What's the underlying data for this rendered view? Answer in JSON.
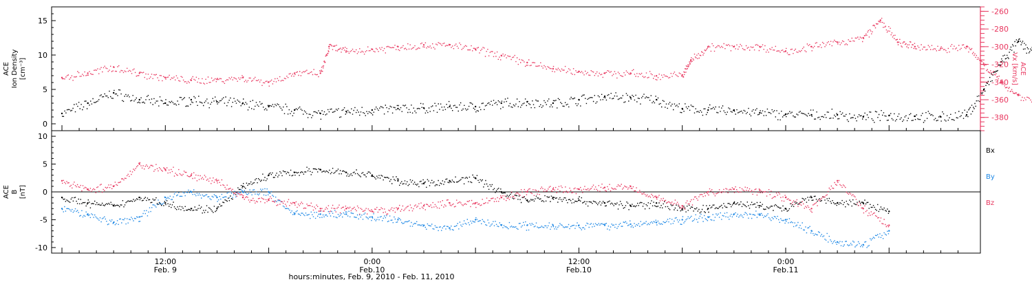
{
  "colors": {
    "black": "#000000",
    "red": "#e8375f",
    "blue": "#1e88e5",
    "frame": "#000000"
  },
  "chart_data": [
    {
      "type": "scatter",
      "panel": "top",
      "ylabel_lines": [
        "ACE",
        "Ion Density",
        "[cm⁻³]"
      ],
      "yticks": [
        "0",
        "5",
        "10",
        "15"
      ],
      "ylim": [
        -1,
        17
      ],
      "right_axis": {
        "label_lines": [
          "ACE",
          "Vx [km/s]"
        ],
        "yticks": [
          "-260",
          "-280",
          "-300",
          "-320",
          "-340",
          "-360",
          "-380"
        ],
        "ylim": [
          -395,
          -255
        ]
      },
      "series": [
        {
          "color": "black",
          "axis": "left",
          "points": [
            [
              0,
              1.5
            ],
            [
              1.5,
              3
            ],
            [
              3,
              4.5
            ],
            [
              4.5,
              3.5
            ],
            [
              6,
              3
            ],
            [
              7.5,
              3.5
            ],
            [
              9,
              3.2
            ],
            [
              10.5,
              3.0
            ],
            [
              12,
              2.5
            ],
            [
              13.5,
              2.0
            ],
            [
              15,
              1.5
            ],
            [
              16.5,
              1.8
            ],
            [
              18,
              2.0
            ],
            [
              19.5,
              2.2
            ],
            [
              21,
              2.3
            ],
            [
              22.5,
              2.5
            ],
            [
              24,
              2.5
            ],
            [
              25.5,
              3.0
            ],
            [
              27,
              3.2
            ],
            [
              28.5,
              3.0
            ],
            [
              30,
              3.5
            ],
            [
              31.5,
              4.0
            ],
            [
              33,
              3.8
            ],
            [
              34.5,
              3.5
            ],
            [
              36,
              2.2
            ],
            [
              37.5,
              2.0
            ],
            [
              39,
              2.0
            ],
            [
              40.5,
              1.6
            ],
            [
              42,
              1.4
            ],
            [
              43.5,
              1.3
            ],
            [
              45,
              1.3
            ],
            [
              46.5,
              1.0
            ],
            [
              48,
              1.2
            ],
            [
              49.5,
              1.1
            ],
            [
              51,
              1.0
            ],
            [
              52.5,
              1.3
            ],
            [
              53.5,
              5
            ],
            [
              54.5,
              9
            ],
            [
              55.5,
              12
            ],
            [
              56.5,
              10
            ],
            [
              57.5,
              14
            ],
            [
              58.5,
              15
            ],
            [
              59.5,
              13
            ],
            [
              60.5,
              14
            ]
          ]
        },
        {
          "color": "red",
          "axis": "right",
          "points": [
            [
              0,
              -335
            ],
            [
              1.5,
              -330
            ],
            [
              3,
              -323
            ],
            [
              4.5,
              -330
            ],
            [
              6,
              -335
            ],
            [
              7.5,
              -338
            ],
            [
              9,
              -337
            ],
            [
              10.5,
              -335
            ],
            [
              12,
              -340
            ],
            [
              13.5,
              -330
            ],
            [
              15,
              -330
            ],
            [
              15.5,
              -300
            ],
            [
              16.5,
              -305
            ],
            [
              18,
              -303
            ],
            [
              19.5,
              -300
            ],
            [
              21,
              -298
            ],
            [
              22.5,
              -298
            ],
            [
              24,
              -303
            ],
            [
              25.5,
              -310
            ],
            [
              27,
              -318
            ],
            [
              28.5,
              -325
            ],
            [
              30,
              -328
            ],
            [
              31.5,
              -330
            ],
            [
              33,
              -330
            ],
            [
              34.5,
              -333
            ],
            [
              36,
              -332
            ],
            [
              36.5,
              -315
            ],
            [
              37.5,
              -300
            ],
            [
              39,
              -300
            ],
            [
              40.5,
              -300
            ],
            [
              42,
              -305
            ],
            [
              43.5,
              -300
            ],
            [
              45,
              -295
            ],
            [
              46.5,
              -290
            ],
            [
              47.5,
              -270
            ],
            [
              48.5,
              -295
            ],
            [
              49.5,
              -300
            ],
            [
              51,
              -302
            ],
            [
              52.5,
              -300
            ],
            [
              53.5,
              -320
            ],
            [
              54.5,
              -340
            ],
            [
              55.5,
              -355
            ],
            [
              57,
              -365
            ],
            [
              58.5,
              -360
            ],
            [
              60,
              -350
            ],
            [
              61,
              -360
            ]
          ]
        }
      ]
    },
    {
      "type": "scatter",
      "panel": "bottom",
      "ylabel_lines": [
        "ACE",
        "B",
        "[nT]"
      ],
      "yticks": [
        "-10",
        "-5",
        "0",
        "5",
        "10"
      ],
      "ylim": [
        -11,
        11
      ],
      "legend": [
        "Bx",
        "By",
        "Bz"
      ],
      "legend_placement": "right",
      "xticks": [
        {
          "t": 6,
          "line1": "12:00",
          "line2": "Feb. 9"
        },
        {
          "t": 18,
          "line1": "0:00",
          "line2": "Feb.10"
        },
        {
          "t": 30,
          "line1": "12:00",
          "line2": "Feb.10"
        },
        {
          "t": 42,
          "line1": "0:00",
          "line2": "Feb.11"
        }
      ],
      "xlim": [
        -0.6,
        53.3
      ],
      "xlabel": "hours:minutes, Feb.  9, 2010 - Feb. 11, 2010",
      "series": [
        {
          "name": "Bx",
          "color": "black",
          "points": [
            [
              0,
              -1
            ],
            [
              1.5,
              -2
            ],
            [
              3,
              -2.5
            ],
            [
              4.5,
              -1
            ],
            [
              6,
              -2
            ],
            [
              7.5,
              -3
            ],
            [
              9,
              -3
            ],
            [
              10.5,
              1
            ],
            [
              12,
              3
            ],
            [
              13.5,
              3.5
            ],
            [
              15,
              4
            ],
            [
              16.5,
              3.5
            ],
            [
              18,
              3
            ],
            [
              19.5,
              2
            ],
            [
              21,
              1.5
            ],
            [
              22.5,
              2
            ],
            [
              24,
              2.5
            ],
            [
              25.5,
              0
            ],
            [
              27,
              -1.5
            ],
            [
              28.5,
              -1
            ],
            [
              30,
              -1.5
            ],
            [
              31.5,
              -2
            ],
            [
              33,
              -2.5
            ],
            [
              34.5,
              -2
            ],
            [
              36,
              -3
            ],
            [
              37.5,
              -3
            ],
            [
              39,
              -2
            ],
            [
              40.5,
              -2.5
            ],
            [
              42,
              -3
            ],
            [
              43.5,
              -1
            ],
            [
              45,
              -2
            ],
            [
              46.5,
              -2
            ],
            [
              48,
              -3.5
            ]
          ]
        },
        {
          "name": "By",
          "color": "blue",
          "points": [
            [
              0,
              -3
            ],
            [
              1.5,
              -4
            ],
            [
              3,
              -5.5
            ],
            [
              4.5,
              -4.5
            ],
            [
              6,
              -1
            ],
            [
              7.5,
              0
            ],
            [
              9,
              -1
            ],
            [
              10.5,
              0
            ],
            [
              12,
              0
            ],
            [
              13.5,
              -4
            ],
            [
              15,
              -4
            ],
            [
              16.5,
              -4
            ],
            [
              18,
              -4.5
            ],
            [
              19.5,
              -5
            ],
            [
              21,
              -6
            ],
            [
              22.5,
              -6.5
            ],
            [
              24,
              -5
            ],
            [
              25.5,
              -6
            ],
            [
              27,
              -6
            ],
            [
              28.5,
              -6
            ],
            [
              30,
              -6
            ],
            [
              31.5,
              -6
            ],
            [
              33,
              -5.8
            ],
            [
              34.5,
              -5.5
            ],
            [
              36,
              -5
            ],
            [
              37.5,
              -4.5
            ],
            [
              39,
              -4
            ],
            [
              40.5,
              -4
            ],
            [
              42,
              -5
            ],
            [
              43.5,
              -7
            ],
            [
              45,
              -9
            ],
            [
              46.5,
              -9.5
            ],
            [
              48,
              -7
            ]
          ]
        },
        {
          "name": "Bz",
          "color": "red",
          "points": [
            [
              0,
              2
            ],
            [
              1.5,
              0.5
            ],
            [
              3,
              1
            ],
            [
              4.5,
              5
            ],
            [
              6,
              4
            ],
            [
              7.5,
              3
            ],
            [
              9,
              2
            ],
            [
              10.5,
              -1
            ],
            [
              12,
              -1.5
            ],
            [
              13.5,
              -2
            ],
            [
              15,
              -3
            ],
            [
              16.5,
              -3
            ],
            [
              18,
              -3.5
            ],
            [
              19.5,
              -3
            ],
            [
              21,
              -2.5
            ],
            [
              22.5,
              -2
            ],
            [
              24,
              -2
            ],
            [
              25.5,
              -1
            ],
            [
              27,
              0
            ],
            [
              28.5,
              0.5
            ],
            [
              30,
              0.5
            ],
            [
              31.5,
              0.8
            ],
            [
              33,
              1
            ],
            [
              34.5,
              -1
            ],
            [
              36,
              -2.5
            ],
            [
              37.5,
              0
            ],
            [
              39,
              0.5
            ],
            [
              40.5,
              0.3
            ],
            [
              42,
              -1
            ],
            [
              43.5,
              -3
            ],
            [
              45,
              2
            ],
            [
              46.5,
              -3
            ],
            [
              48,
              -6
            ]
          ]
        }
      ]
    }
  ]
}
